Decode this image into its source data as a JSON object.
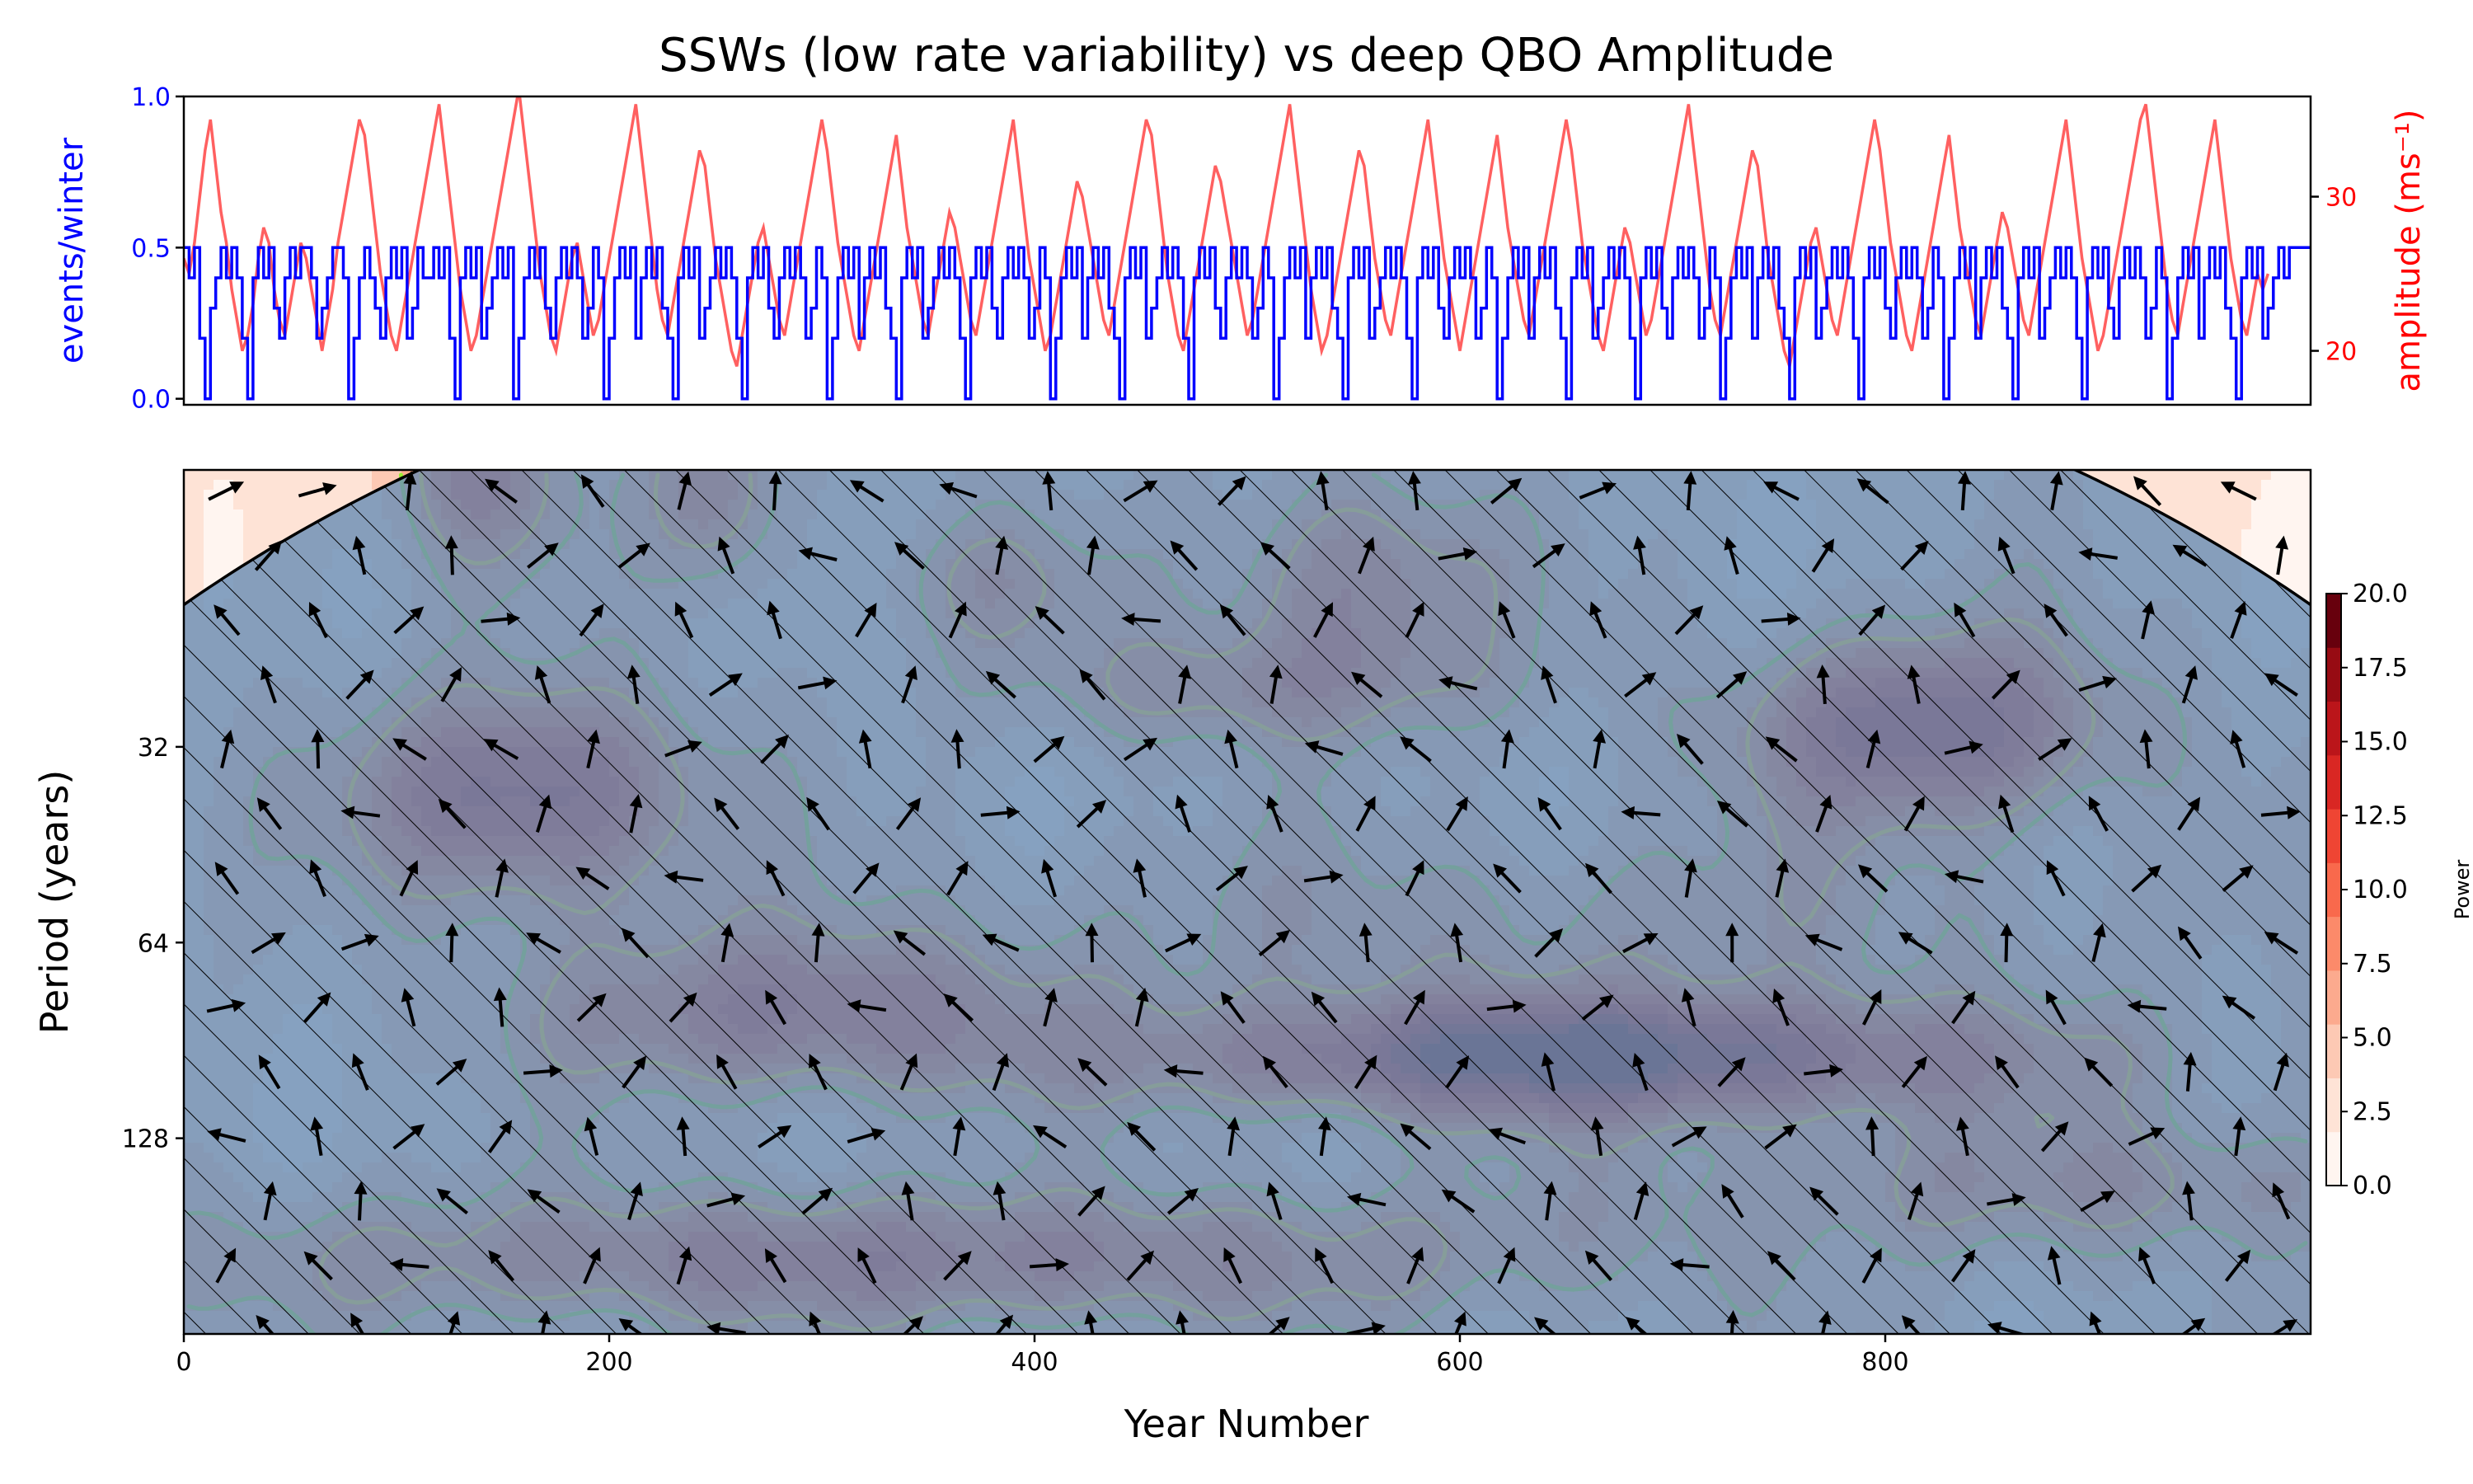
{
  "chart_data": [
    {
      "type": "line",
      "panel": "top",
      "title": "SSWs (low rate variability) vs deep QBO Amplitude",
      "xlim": [
        0,
        1000
      ],
      "left_axis": {
        "label": "events/winter",
        "ylim": [
          -0.02,
          1.0
        ],
        "ticks": [
          0.0,
          0.5,
          1.0
        ],
        "tick_labels": [
          "0.0",
          "0.5",
          "1.0"
        ],
        "color": "#0000ff"
      },
      "right_axis": {
        "label": "amplitude (ms⁻¹)",
        "ylim": [
          16.5,
          36.5
        ],
        "ticks": [
          20,
          30
        ],
        "tick_labels": [
          "20",
          "30"
        ],
        "color": "#ff0000"
      },
      "series": [
        {
          "name": "",
          "axis": "left",
          "color": "#0000ff",
          "x_step": 2.5,
          "y": [
            0.5,
            0.4,
            0.5,
            0.2,
            0.0,
            0.3,
            0.4,
            0.5,
            0.4,
            0.5,
            0.4,
            0.2,
            0.0,
            0.4,
            0.5,
            0.4,
            0.5,
            0.3,
            0.2,
            0.4,
            0.5,
            0.4,
            0.5,
            0.5,
            0.4,
            0.2,
            0.3,
            0.4,
            0.5,
            0.5,
            0.4,
            0.0,
            0.2,
            0.4,
            0.5,
            0.4,
            0.3,
            0.2,
            0.4,
            0.5,
            0.4,
            0.5,
            0.2,
            0.3,
            0.5,
            0.4,
            0.4,
            0.5,
            0.4,
            0.5,
            0.2,
            0.0,
            0.4,
            0.5,
            0.4,
            0.5,
            0.2,
            0.3,
            0.4,
            0.5,
            0.4,
            0.5,
            0.0,
            0.2,
            0.4,
            0.5,
            0.4,
            0.5,
            0.3,
            0.2,
            0.4,
            0.5,
            0.4,
            0.5,
            0.4,
            0.2,
            0.3,
            0.5,
            0.4,
            0.0,
            0.2,
            0.4,
            0.5,
            0.4,
            0.5,
            0.2,
            0.4,
            0.5,
            0.4,
            0.5,
            0.3,
            0.2,
            0.0,
            0.4,
            0.5,
            0.4,
            0.5,
            0.2,
            0.3,
            0.4,
            0.5,
            0.4,
            0.5,
            0.4,
            0.2,
            0.0,
            0.4,
            0.5,
            0.4,
            0.5,
            0.3,
            0.2,
            0.4,
            0.5,
            0.4,
            0.5,
            0.4,
            0.2,
            0.3,
            0.5,
            0.4,
            0.0,
            0.2,
            0.4,
            0.5,
            0.4,
            0.5,
            0.2,
            0.4,
            0.5,
            0.4,
            0.5,
            0.3,
            0.2,
            0.0,
            0.4,
            0.5,
            0.4,
            0.5,
            0.2,
            0.3,
            0.4,
            0.5,
            0.4,
            0.5,
            0.4,
            0.2,
            0.0,
            0.4,
            0.5,
            0.4,
            0.5,
            0.3,
            0.2,
            0.4,
            0.5,
            0.4,
            0.5,
            0.4,
            0.2,
            0.3,
            0.5,
            0.4,
            0.0,
            0.2,
            0.4,
            0.5,
            0.4,
            0.5,
            0.2,
            0.4,
            0.5,
            0.4,
            0.5,
            0.3,
            0.2,
            0.0,
            0.4,
            0.5,
            0.4,
            0.5,
            0.2,
            0.3,
            0.4,
            0.5,
            0.4,
            0.5,
            0.4,
            0.2,
            0.0,
            0.4,
            0.5,
            0.4,
            0.5,
            0.3,
            0.2,
            0.4,
            0.5,
            0.4,
            0.5,
            0.4,
            0.2,
            0.3,
            0.5,
            0.4,
            0.0,
            0.2,
            0.4,
            0.5,
            0.4,
            0.5,
            0.2,
            0.4,
            0.5,
            0.4,
            0.5,
            0.3,
            0.2,
            0.0,
            0.4,
            0.5,
            0.4,
            0.5,
            0.2,
            0.3,
            0.4,
            0.5,
            0.4,
            0.5,
            0.4,
            0.2,
            0.0,
            0.4,
            0.5,
            0.4,
            0.5,
            0.3,
            0.2,
            0.4,
            0.5,
            0.4,
            0.5,
            0.4,
            0.2,
            0.3,
            0.5,
            0.4,
            0.0,
            0.2,
            0.4,
            0.5,
            0.4,
            0.5,
            0.2,
            0.4,
            0.5,
            0.4,
            0.5,
            0.3,
            0.2,
            0.0,
            0.4,
            0.5,
            0.4,
            0.5,
            0.2,
            0.3,
            0.4,
            0.5,
            0.4,
            0.5,
            0.4,
            0.2,
            0.0,
            0.4,
            0.5,
            0.4,
            0.5,
            0.3,
            0.2,
            0.4,
            0.5,
            0.4,
            0.5,
            0.4,
            0.2,
            0.3,
            0.5,
            0.4,
            0.0,
            0.2,
            0.4,
            0.5,
            0.4,
            0.5,
            0.2,
            0.4,
            0.5,
            0.4,
            0.5,
            0.3,
            0.2,
            0.0,
            0.4,
            0.5,
            0.4,
            0.5,
            0.2,
            0.3,
            0.4,
            0.5,
            0.4,
            0.5,
            0.4,
            0.2,
            0.0,
            0.4,
            0.5,
            0.4,
            0.5,
            0.3,
            0.2,
            0.4,
            0.5,
            0.4,
            0.5,
            0.4,
            0.2,
            0.3,
            0.5,
            0.4,
            0.0,
            0.2,
            0.4,
            0.5,
            0.4,
            0.5,
            0.2,
            0.4,
            0.5,
            0.4,
            0.5,
            0.3,
            0.2,
            0.0,
            0.4,
            0.5,
            0.4,
            0.5,
            0.2,
            0.3,
            0.4,
            0.5,
            0.4,
            0.5,
            0.4,
            0.2,
            0.0,
            0.4,
            0.5,
            0.4,
            0.5,
            0.3,
            0.2,
            0.4,
            0.5,
            0.4,
            0.5,
            0.4,
            0.2,
            0.3,
            0.5,
            0.4,
            0.0,
            0.2,
            0.4,
            0.5,
            0.4,
            0.5,
            0.2,
            0.4,
            0.5,
            0.4,
            0.5,
            0.3,
            0.2,
            0.0,
            0.4,
            0.5,
            0.4,
            0.5,
            0.2,
            0.3,
            0.4,
            0.5,
            0.4,
            0.5,
            0.5,
            0.5,
            0.5,
            0.5,
            0.5
          ]
        },
        {
          "name": "",
          "axis": "right",
          "color": "#ff6060",
          "x_step": 2.5,
          "y": [
            26,
            25,
            27,
            30,
            33,
            35,
            32,
            29,
            27,
            24,
            22,
            20,
            21,
            23,
            26,
            28,
            27,
            24,
            22,
            21,
            23,
            25,
            27,
            26,
            24,
            22,
            20,
            22,
            24,
            27,
            29,
            31,
            33,
            35,
            34,
            31,
            28,
            25,
            23,
            21,
            20,
            22,
            24,
            26,
            28,
            30,
            32,
            34,
            36,
            33,
            30,
            27,
            24,
            22,
            20,
            21,
            23,
            25,
            27,
            29,
            31,
            33,
            35,
            37,
            34,
            31,
            28,
            25,
            23,
            21,
            20,
            22,
            24,
            26,
            27,
            25,
            23,
            21,
            22,
            24,
            26,
            28,
            30,
            32,
            34,
            36,
            33,
            30,
            27,
            24,
            22,
            21,
            23,
            25,
            27,
            29,
            31,
            33,
            32,
            29,
            26,
            24,
            22,
            20,
            19,
            21,
            23,
            25,
            27,
            28,
            26,
            24,
            22,
            21,
            23,
            25,
            27,
            29,
            31,
            33,
            35,
            33,
            30,
            27,
            25,
            23,
            21,
            20,
            22,
            24,
            26,
            28,
            30,
            32,
            34,
            31,
            28,
            26,
            24,
            22,
            21,
            23,
            25,
            27,
            29,
            28,
            26,
            24,
            22,
            21,
            23,
            25,
            27,
            29,
            31,
            33,
            35,
            32,
            29,
            26,
            24,
            22,
            20,
            21,
            23,
            25,
            27,
            29,
            31,
            30,
            28,
            26,
            24,
            22,
            21,
            23,
            25,
            27,
            29,
            31,
            33,
            35,
            34,
            31,
            28,
            25,
            23,
            21,
            20,
            22,
            24,
            26,
            28,
            30,
            32,
            31,
            29,
            27,
            25,
            23,
            21,
            22,
            24,
            26,
            28,
            30,
            32,
            34,
            36,
            33,
            30,
            27,
            24,
            22,
            20,
            21,
            23,
            25,
            27,
            29,
            31,
            33,
            32,
            29,
            26,
            24,
            22,
            21,
            23,
            25,
            27,
            29,
            31,
            33,
            35,
            32,
            29,
            26,
            24,
            22,
            20,
            22,
            24,
            26,
            28,
            30,
            32,
            34,
            31,
            28,
            26,
            24,
            22,
            21,
            23,
            25,
            27,
            29,
            31,
            33,
            35,
            33,
            30,
            27,
            25,
            23,
            21,
            20,
            22,
            24,
            26,
            28,
            27,
            25,
            23,
            21,
            22,
            24,
            26,
            28,
            30,
            32,
            34,
            36,
            33,
            30,
            27,
            24,
            22,
            21,
            23,
            25,
            27,
            29,
            31,
            33,
            32,
            29,
            26,
            24,
            22,
            20,
            19,
            21,
            23,
            25,
            27,
            28,
            26,
            24,
            22,
            21,
            23,
            25,
            27,
            29,
            31,
            33,
            35,
            33,
            30,
            27,
            25,
            23,
            21,
            20,
            22,
            24,
            26,
            28,
            30,
            32,
            34,
            31,
            28,
            26,
            24,
            22,
            21,
            23,
            25,
            27,
            29,
            28,
            26,
            24,
            22,
            21,
            23,
            25,
            27,
            29,
            31,
            33,
            35,
            32,
            29,
            26,
            24,
            22,
            20,
            21,
            23,
            25,
            27,
            29,
            31,
            33,
            35,
            36,
            33,
            30,
            27,
            24,
            22,
            21,
            23,
            25,
            27,
            29,
            31,
            33,
            35,
            32,
            29,
            26,
            24,
            22,
            21,
            23,
            25,
            24,
            25
          ]
        }
      ]
    },
    {
      "type": "heatmap",
      "panel": "bottom",
      "xlabel": "Year Number",
      "ylabel": "Period (years)",
      "xlim": [
        0,
        1000
      ],
      "x_ticks": [
        0,
        200,
        400,
        600,
        800
      ],
      "y_scale": "log2",
      "ylim": [
        12,
        256
      ],
      "y_ticks": [
        32,
        64,
        128
      ],
      "colorbar": {
        "label": "Power",
        "range": [
          0,
          20
        ],
        "ticks": [
          0.0,
          2.5,
          5.0,
          7.5,
          10.0,
          12.5,
          15.0,
          17.5,
          20.0
        ],
        "tick_labels": [
          "0.0",
          "2.5",
          "5.0",
          "7.5",
          "10.0",
          "12.5",
          "15.0",
          "17.5",
          "20.0"
        ],
        "colors": [
          "#fff5f0",
          "#fee3d6",
          "#fdc9b4",
          "#fcaa8e",
          "#fc8a6a",
          "#f9694c",
          "#ef4533",
          "#d92723",
          "#bb151a",
          "#970b13",
          "#67000d"
        ]
      },
      "power_blobs": [
        {
          "x": 160,
          "period": 38,
          "peak": 15,
          "sx": 55,
          "sy": 0.38
        },
        {
          "x": 660,
          "period": 96,
          "peak": 18,
          "sx": 140,
          "sy": 0.22
        },
        {
          "x": 820,
          "period": 30,
          "peak": 15,
          "sx": 60,
          "sy": 0.34
        },
        {
          "x": 285,
          "period": 82,
          "peak": 11,
          "sx": 80,
          "sy": 0.3
        },
        {
          "x": 550,
          "period": 18,
          "peak": 9,
          "sx": 45,
          "sy": 0.38
        },
        {
          "x": 140,
          "period": 12,
          "peak": 9,
          "sx": 30,
          "sy": 0.35
        },
        {
          "x": 250,
          "period": 13,
          "peak": 9,
          "sx": 22,
          "sy": 0.35
        },
        {
          "x": 330,
          "period": 196,
          "peak": 10,
          "sx": 220,
          "sy": 0.25
        },
        {
          "x": 500,
          "period": 26,
          "peak": 6,
          "sx": 80,
          "sy": 0.22
        },
        {
          "x": 900,
          "period": 150,
          "peak": 6,
          "sx": 160,
          "sy": 0.25
        },
        {
          "x": 380,
          "period": 18,
          "peak": 5,
          "sx": 40,
          "sy": 0.25
        },
        {
          "x": 640,
          "period": 60,
          "peak": 4,
          "sx": 200,
          "sy": 0.35
        }
      ],
      "background_power": 3.2,
      "significance_contours": [
        {
          "name": "",
          "color": "#ffdd22",
          "threshold": 8.5
        },
        {
          "name": "",
          "color": "#99ee33",
          "threshold": 6.2
        }
      ],
      "cone_of_influence": {
        "edge_years": 220,
        "fill": "#6b8fb5",
        "hatched": true
      },
      "phase_arrows": {
        "grid_x_step": 43,
        "grid_period_steps": 14
      }
    }
  ]
}
